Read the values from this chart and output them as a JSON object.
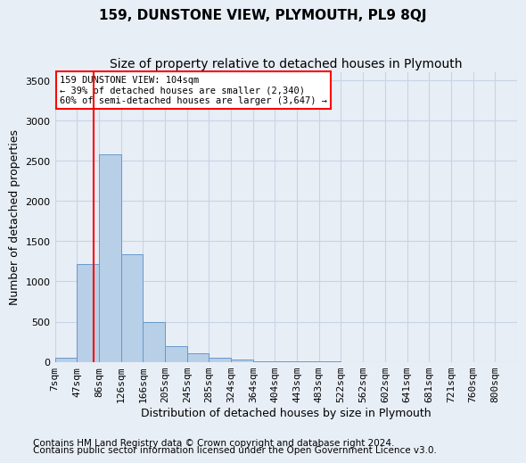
{
  "title": "159, DUNSTONE VIEW, PLYMOUTH, PL9 8QJ",
  "subtitle": "Size of property relative to detached houses in Plymouth",
  "xlabel": "Distribution of detached houses by size in Plymouth",
  "ylabel": "Number of detached properties",
  "bin_labels": [
    "7sqm",
    "47sqm",
    "86sqm",
    "126sqm",
    "166sqm",
    "205sqm",
    "245sqm",
    "285sqm",
    "324sqm",
    "364sqm",
    "404sqm",
    "443sqm",
    "483sqm",
    "522sqm",
    "562sqm",
    "602sqm",
    "641sqm",
    "681sqm",
    "721sqm",
    "760sqm",
    "800sqm"
  ],
  "bar_values": [
    50,
    1220,
    2580,
    1340,
    500,
    190,
    110,
    50,
    30,
    10,
    5,
    2,
    1,
    0,
    0,
    0,
    0,
    0,
    0,
    0,
    0
  ],
  "bar_color": "#b8cfe8",
  "bar_edge_color": "#6699cc",
  "grid_color": "#c8d4e4",
  "bg_color": "#e8eef6",
  "red_line_x": 1.75,
  "annotation_text": "159 DUNSTONE VIEW: 104sqm\n← 39% of detached houses are smaller (2,340)\n60% of semi-detached houses are larger (3,647) →",
  "annotation_box_color": "white",
  "annotation_box_edge": "red",
  "ylim": [
    0,
    3600
  ],
  "yticks": [
    0,
    500,
    1000,
    1500,
    2000,
    2500,
    3000,
    3500
  ],
  "footer1": "Contains HM Land Registry data © Crown copyright and database right 2024.",
  "footer2": "Contains public sector information licensed under the Open Government Licence v3.0.",
  "title_fontsize": 11,
  "subtitle_fontsize": 10,
  "axis_label_fontsize": 9,
  "tick_fontsize": 8,
  "footer_fontsize": 7.5
}
